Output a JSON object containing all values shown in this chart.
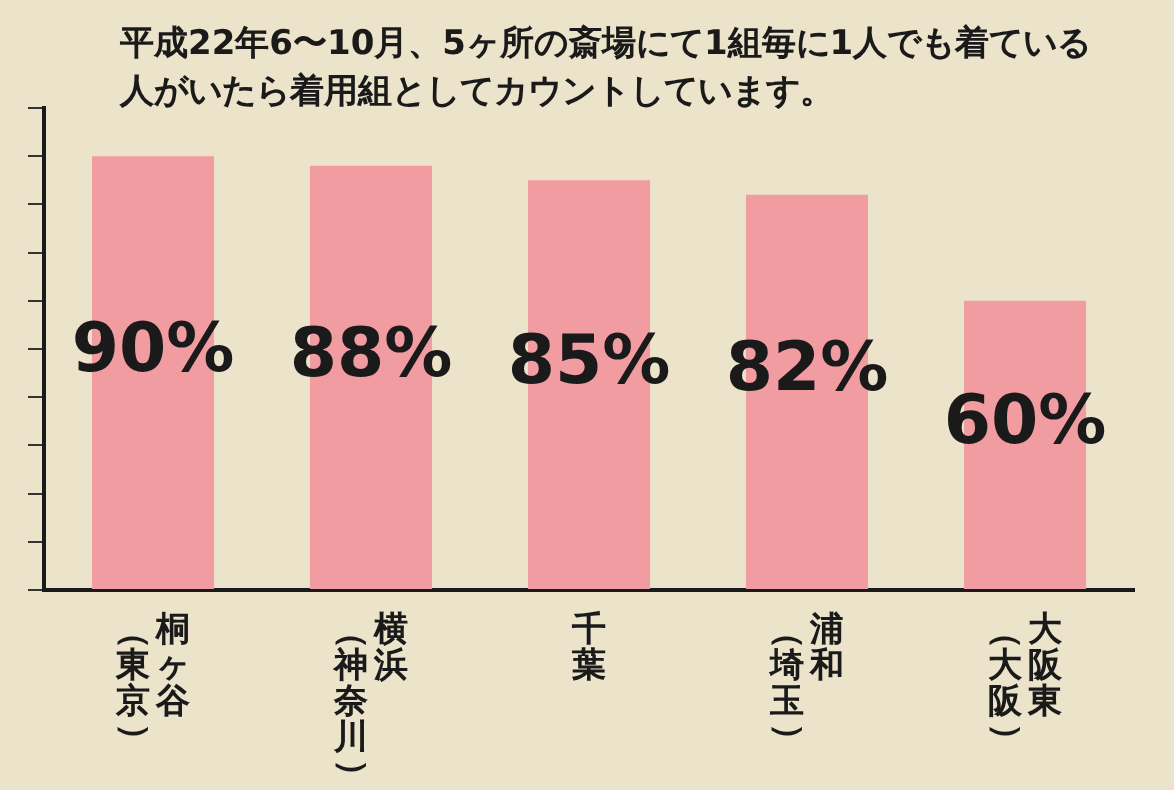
{
  "chart_data": {
    "type": "bar",
    "title": "平成22年6〜10月、5ヶ所の斎場にて1組毎に1人でも着ている人がいたら着用組としてカウントしています。",
    "categories": [
      "桐ヶ谷（東京）",
      "横浜（神奈川）",
      "千葉",
      "浦和（埼玉）",
      "大阪東（大阪）"
    ],
    "values": [
      90,
      88,
      85,
      82,
      60
    ],
    "color": "#f09ca0",
    "value_labels": [
      "90%",
      "88%",
      "85%",
      "82%",
      "60%"
    ],
    "ylim": [
      0,
      100
    ],
    "yticks": [
      {
        "value": 0,
        "label": null
      },
      {
        "value": 10,
        "label": null
      },
      {
        "value": 20,
        "label": null
      },
      {
        "value": 30,
        "label": null
      },
      {
        "value": 40,
        "label": null
      },
      {
        "value": 50,
        "label": null
      },
      {
        "value": 60,
        "label": null
      },
      {
        "value": 70,
        "label": null
      },
      {
        "value": 80,
        "label": null
      },
      {
        "value": 90,
        "label": null
      },
      {
        "value": 100,
        "label": null
      }
    ],
    "tick_labels": "x",
    "grid": false,
    "legend": false
  }
}
